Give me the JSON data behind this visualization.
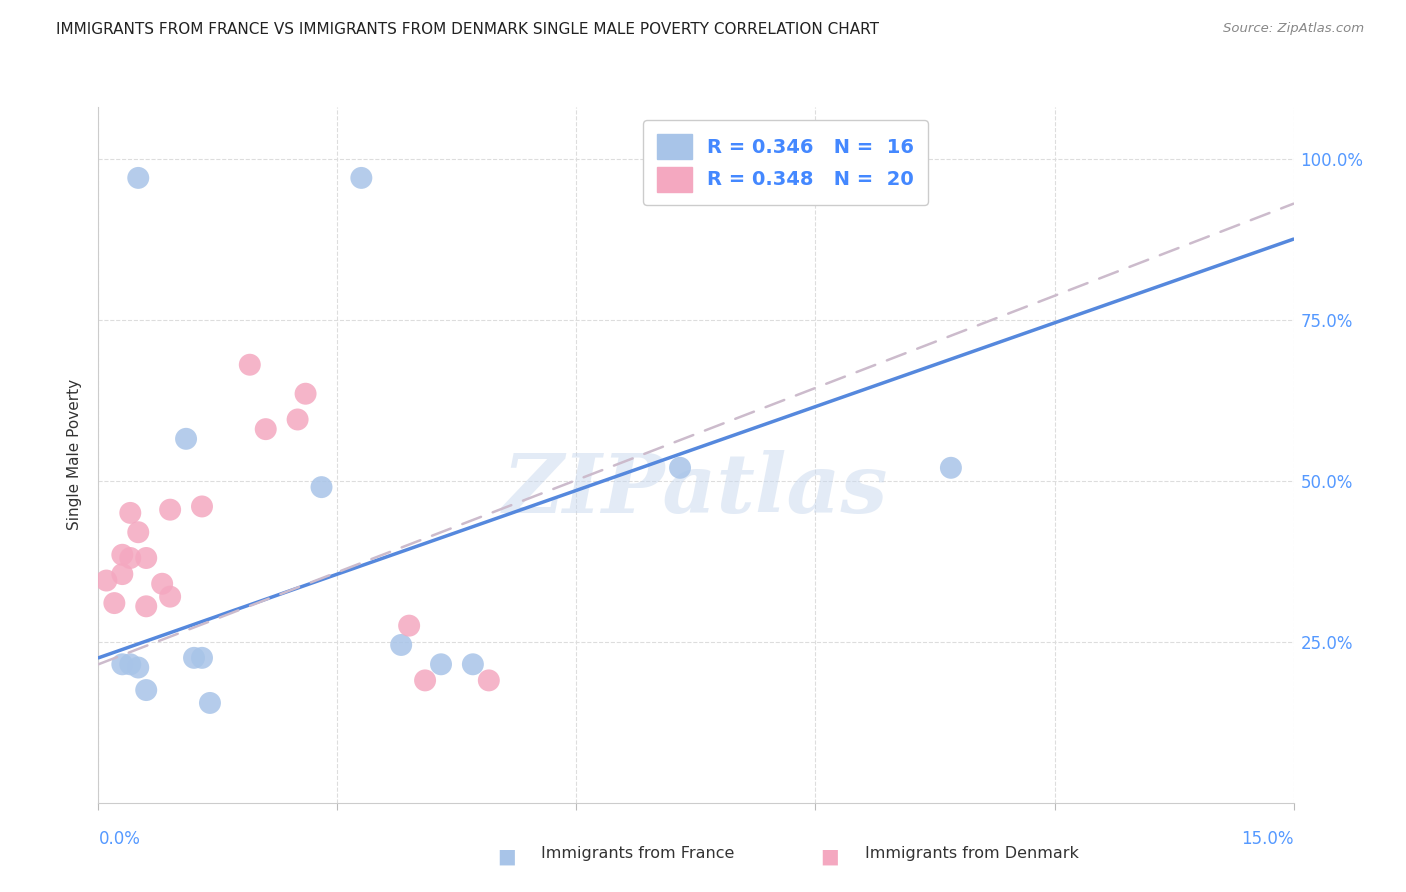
{
  "title": "IMMIGRANTS FROM FRANCE VS IMMIGRANTS FROM DENMARK SINGLE MALE POVERTY CORRELATION CHART",
  "source": "Source: ZipAtlas.com",
  "ylabel": "Single Male Poverty",
  "xlim": [
    0.0,
    0.15
  ],
  "ylim": [
    0.0,
    1.08
  ],
  "france_color": "#a8c4e8",
  "denmark_color": "#f4a8c0",
  "france_line_color": "#5588dd",
  "denmark_line_color": "#ddaacc",
  "france_points": [
    [
      0.005,
      0.97
    ],
    [
      0.033,
      0.97
    ],
    [
      0.011,
      0.565
    ],
    [
      0.028,
      0.49
    ],
    [
      0.107,
      0.52
    ],
    [
      0.003,
      0.215
    ],
    [
      0.004,
      0.215
    ],
    [
      0.005,
      0.21
    ],
    [
      0.006,
      0.175
    ],
    [
      0.012,
      0.225
    ],
    [
      0.013,
      0.225
    ],
    [
      0.014,
      0.155
    ],
    [
      0.038,
      0.245
    ],
    [
      0.043,
      0.215
    ],
    [
      0.047,
      0.215
    ],
    [
      0.073,
      0.52
    ]
  ],
  "denmark_points": [
    [
      0.001,
      0.345
    ],
    [
      0.002,
      0.31
    ],
    [
      0.003,
      0.355
    ],
    [
      0.003,
      0.385
    ],
    [
      0.004,
      0.38
    ],
    [
      0.004,
      0.45
    ],
    [
      0.005,
      0.42
    ],
    [
      0.006,
      0.38
    ],
    [
      0.006,
      0.305
    ],
    [
      0.008,
      0.34
    ],
    [
      0.009,
      0.32
    ],
    [
      0.009,
      0.455
    ],
    [
      0.013,
      0.46
    ],
    [
      0.019,
      0.68
    ],
    [
      0.021,
      0.58
    ],
    [
      0.026,
      0.635
    ],
    [
      0.025,
      0.595
    ],
    [
      0.039,
      0.275
    ],
    [
      0.041,
      0.19
    ],
    [
      0.049,
      0.19
    ]
  ],
  "france_line_x": [
    0.0,
    0.15
  ],
  "france_line_y": [
    0.225,
    0.875
  ],
  "denmark_line_x": [
    0.0,
    0.15
  ],
  "denmark_line_y": [
    0.215,
    0.93
  ],
  "yticks": [
    0.25,
    0.5,
    0.75,
    1.0
  ],
  "ytick_labels": [
    "25.0%",
    "50.0%",
    "75.0%",
    "100.0%"
  ],
  "xticks": [
    0.0,
    0.03,
    0.06,
    0.09,
    0.12,
    0.15
  ],
  "watermark": "ZIPatlas",
  "legend_france_text": "R = 0.346   N =  16",
  "legend_denmark_text": "R = 0.348   N =  20",
  "bottom_legend_france": "Immigrants from France",
  "bottom_legend_denmark": "Immigrants from Denmark"
}
